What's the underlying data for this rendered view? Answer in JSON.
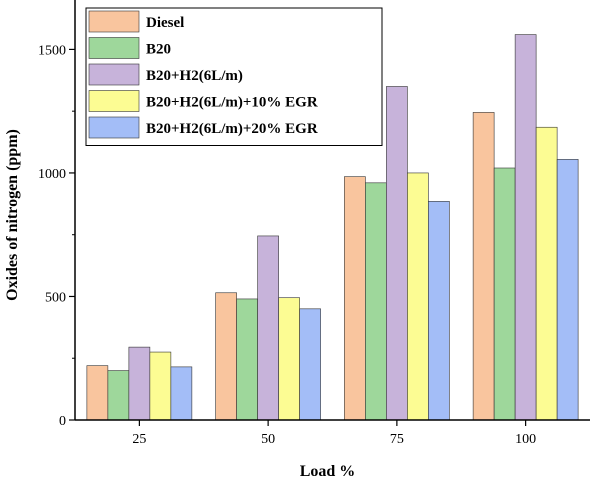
{
  "chart_data": {
    "type": "bar",
    "title": "",
    "xlabel": "Load %",
    "ylabel": "Oxides of nitrogen (ppm)",
    "categories": [
      "25",
      "50",
      "75",
      "100"
    ],
    "ylim": [
      0,
      1700
    ],
    "yticks": [
      0,
      500,
      1000,
      1500
    ],
    "grid": false,
    "legend_position": "top-left",
    "series": [
      {
        "name": "Diesel",
        "color": "#F9C59E",
        "values": [
          220,
          515,
          985,
          1245
        ]
      },
      {
        "name": "B20",
        "color": "#9ED79B",
        "values": [
          200,
          490,
          960,
          1020
        ]
      },
      {
        "name": "B20+H2(6L/m)",
        "color": "#C7B3DA",
        "values": [
          295,
          745,
          1350,
          1560
        ]
      },
      {
        "name": "B20+H2(6L/m)+10% EGR",
        "color": "#FCFC93",
        "values": [
          275,
          495,
          1000,
          1185
        ]
      },
      {
        "name": "B20+H2(6L/m)+20% EGR",
        "color": "#A3BDF7",
        "values": [
          215,
          450,
          885,
          1055
        ]
      }
    ]
  }
}
